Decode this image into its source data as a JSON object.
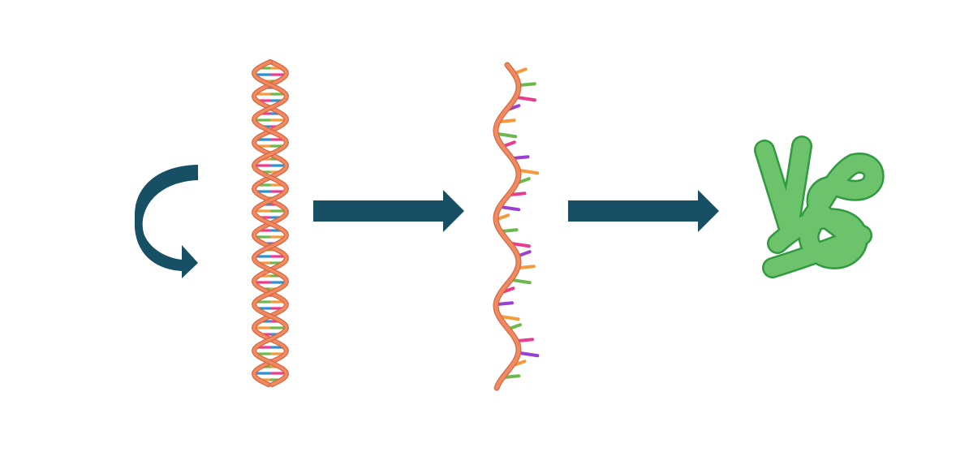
{
  "diagram": {
    "stages": [
      "replication",
      "dna",
      "rna",
      "protein"
    ],
    "colors": {
      "arrow": "#174f64",
      "backbone": "#f08a63",
      "backbone_edge": "#d9663e",
      "protein_fill": "#6cc36b",
      "protein_edge": "#2f9a3f",
      "base_colors": [
        "#f59a3c",
        "#e83d8e",
        "#6ab84e",
        "#2f8fd1",
        "#9b3fd0"
      ]
    },
    "icons": [
      "curved-arrow-icon",
      "dna-double-helix-icon",
      "right-arrow-icon",
      "mrna-strand-icon",
      "right-arrow-icon",
      "folded-protein-icon"
    ]
  }
}
